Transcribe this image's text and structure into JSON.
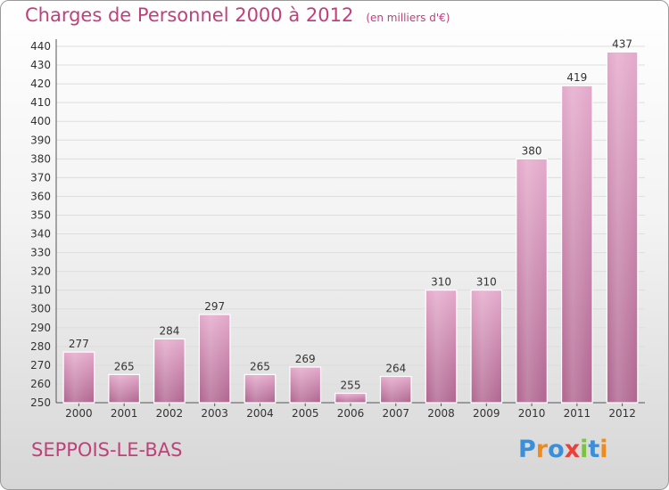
{
  "header": {
    "title": "Charges de Personnel 2000 à 2012",
    "subtitle": "(en milliers d'€)"
  },
  "footer": {
    "town": "SEPPOIS-LE-BAS",
    "logo_letters": [
      "P",
      "r",
      "o",
      "x",
      "i",
      "t",
      "i"
    ],
    "logo_colors": [
      "#3a8fd8",
      "#f08a1c",
      "#3a8fd8",
      "#e8403a",
      "#7cc142",
      "#3a8fd8",
      "#f08a1c"
    ]
  },
  "colors": {
    "bar_top": "#e4a9cb",
    "bar_bottom": "#b06690",
    "text": "#333333",
    "grid": "#dddddd"
  },
  "chart_data": {
    "type": "bar",
    "title": "Charges de Personnel 2000 à 2012",
    "subtitle": "(en milliers d'€)",
    "categories": [
      "2000",
      "2001",
      "2002",
      "2003",
      "2004",
      "2005",
      "2006",
      "2007",
      "2008",
      "2009",
      "2010",
      "2011",
      "2012"
    ],
    "values": [
      277,
      265,
      284,
      297,
      265,
      269,
      255,
      264,
      310,
      310,
      380,
      419,
      437
    ],
    "ylim": [
      250,
      440
    ],
    "yticks": [
      250,
      260,
      270,
      280,
      290,
      300,
      310,
      320,
      330,
      340,
      350,
      360,
      370,
      380,
      390,
      400,
      410,
      420,
      430,
      440
    ],
    "grid": true,
    "legend": "none"
  }
}
